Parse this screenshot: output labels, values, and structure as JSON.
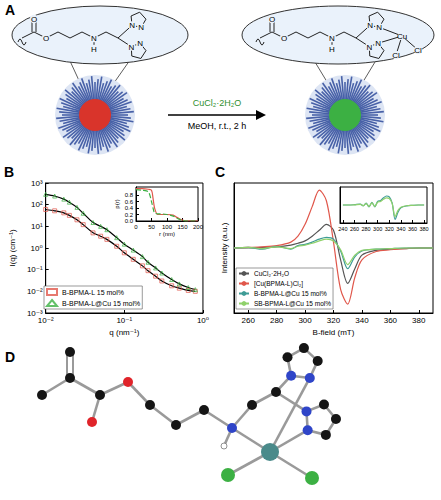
{
  "figure": {
    "A": {
      "panel": "A",
      "reagent": "CuCl₂·2H₂O",
      "conditions": "MeOH, r.t., 2 h",
      "ligand_atoms": [
        "O",
        "O",
        "N",
        "H",
        "N",
        "N",
        "N",
        "N"
      ],
      "complex_atoms": [
        "O",
        "O",
        "N",
        "H",
        "N",
        "N",
        "N",
        "N",
        "Cu",
        "Cl",
        "Cl"
      ]
    },
    "D": {
      "panel": "D"
    }
  },
  "chart_data": [
    {
      "panel": "B",
      "type": "scatter",
      "log": true,
      "grid": false,
      "legend": "lower left",
      "xlabel": "q (nm⁻¹)",
      "ylabel": "I(q) (cm⁻¹)",
      "x": [
        0.01,
        0.013,
        0.017,
        0.02,
        0.025,
        0.03,
        0.04,
        0.05,
        0.06,
        0.08,
        0.1,
        0.13,
        0.17,
        0.2,
        0.25,
        0.3,
        0.4,
        0.5,
        0.65,
        0.8
      ],
      "xlim": [
        0.01,
        1
      ],
      "xticks": [
        {
          "value": 0.01,
          "label": "10⁻²"
        },
        {
          "value": 0.1,
          "label": "10⁻¹"
        },
        {
          "value": 1,
          "label": "10⁰"
        }
      ],
      "ylim": [
        0.001,
        1000
      ],
      "yticks": [
        {
          "value": 0.001,
          "label": "10⁻³"
        },
        {
          "value": 0.01,
          "label": "10⁻²"
        },
        {
          "value": 0.1,
          "label": "10⁻¹"
        },
        {
          "value": 1,
          "label": "10⁰"
        },
        {
          "value": 10,
          "label": "10¹"
        },
        {
          "value": 100,
          "label": "10²"
        },
        {
          "value": 1000,
          "label": "10³"
        }
      ],
      "series": [
        {
          "name": "B-BPMA-L 15 mol%",
          "type": "scatter",
          "marker": "square",
          "color": "#e0574b",
          "values": [
            60,
            52,
            42,
            32,
            20,
            12,
            5,
            3.5,
            2.5,
            1.2,
            0.6,
            0.3,
            0.15,
            0.09,
            0.05,
            0.03,
            0.018,
            0.014,
            0.011,
            0.01
          ]
        },
        {
          "name": "B-BPMA-L@Cu 15 mol%",
          "type": "scatter",
          "marker": "triangle",
          "color": "#3cb043",
          "values": [
            300,
            250,
            180,
            130,
            75,
            40,
            15,
            10,
            7,
            3,
            1.5,
            0.8,
            0.4,
            0.22,
            0.12,
            0.07,
            0.035,
            0.022,
            0.015,
            0.012
          ]
        },
        {
          "type": "line",
          "color": "#000000",
          "line_style": "solid",
          "values": [
            60,
            52,
            42,
            32,
            20,
            12,
            5,
            3.5,
            2.5,
            1.2,
            0.6,
            0.3,
            0.15,
            0.09,
            0.05,
            0.03,
            0.018,
            0.014,
            0.011,
            0.01
          ]
        },
        {
          "type": "line",
          "color": "#000000",
          "line_style": "solid",
          "values": [
            300,
            250,
            180,
            130,
            75,
            40,
            15,
            10,
            7,
            3,
            1.5,
            0.8,
            0.4,
            0.22,
            0.12,
            0.07,
            0.035,
            0.022,
            0.015,
            0.012
          ]
        }
      ],
      "inset": {
        "type": "line",
        "grid": false,
        "xlabel": "r (nm)",
        "ylabel": "p(r)",
        "x": [
          0,
          20,
          40,
          50,
          55,
          60,
          70,
          80,
          100,
          120,
          130,
          140,
          150,
          160,
          200
        ],
        "xlim": [
          0,
          200
        ],
        "xticks": [
          0,
          50,
          100,
          150,
          200
        ],
        "ylim": [
          0,
          1.05
        ],
        "yticks": [
          {
            "value": 0,
            "label": "0.0"
          },
          0.2,
          0.4,
          0.6,
          0.8
        ],
        "series": [
          {
            "color": "#e0574b",
            "line_style": "solid",
            "values": [
              1,
              1,
              0.98,
              0.95,
              0.7,
              0.4,
              0.2,
              0.2,
              0.2,
              0.18,
              0.12,
              0.07,
              0.03,
              0,
              0
            ]
          },
          {
            "color": "#3cb043",
            "line_style": "dashed",
            "values": [
              0.97,
              0.95,
              0.9,
              0.6,
              0.4,
              0.25,
              0.22,
              0.22,
              0.2,
              0.15,
              0.1,
              0.05,
              0.02,
              0,
              0
            ]
          }
        ]
      }
    },
    {
      "panel": "C",
      "type": "line",
      "grid": false,
      "legend": "lower left",
      "tick_labels": "x",
      "xlabel": "B-field (mT)",
      "ylabel": "Intensity (a.u.)",
      "x": [
        250,
        260,
        270,
        280,
        290,
        295,
        300,
        305,
        310,
        315,
        320,
        325,
        330,
        335,
        340,
        350,
        360,
        370,
        380,
        390
      ],
      "xlim": [
        250,
        390
      ],
      "xticks": [
        260,
        280,
        300,
        320,
        340,
        360,
        380
      ],
      "ylim": [
        -1.1,
        1.1
      ],
      "series": [
        {
          "name": "CuCl₂·2H₂O",
          "color": "#555555",
          "line_style": "solid",
          "values": [
            0,
            0,
            0.01,
            0.02,
            0.05,
            0.08,
            0.12,
            0.2,
            0.3,
            0.4,
            0.3,
            -0.2,
            -0.6,
            -0.35,
            -0.12,
            -0.04,
            -0.02,
            -0.01,
            0,
            0
          ]
        },
        {
          "name": "[Cu(BPMA-L)Cl₂]",
          "color": "#e0574b",
          "line_style": "solid",
          "values": [
            0,
            0.01,
            0.02,
            0.04,
            0.1,
            0.2,
            0.4,
            0.7,
            0.98,
            0.8,
            0.1,
            -0.7,
            -0.95,
            -0.5,
            -0.2,
            -0.06,
            -0.03,
            -0.01,
            0,
            0
          ]
        },
        {
          "name": "B-BPMA-L@Cu 15 mol%",
          "color": "#3f9c96",
          "line_style": "solid",
          "values": [
            0,
            0.01,
            -0.02,
            0.03,
            -0.02,
            0.04,
            0.06,
            0.1,
            0.15,
            0.18,
            0.15,
            -0.05,
            -0.35,
            -0.15,
            -0.05,
            -0.02,
            -0.01,
            0,
            0,
            0
          ]
        },
        {
          "name": "SB-BPMA-L@Cu 15 mol%",
          "color": "#8fd16a",
          "line_style": "solid",
          "values": [
            0,
            0.01,
            -0.01,
            0.02,
            -0.01,
            0.03,
            0.05,
            0.08,
            0.12,
            0.15,
            0.12,
            -0.03,
            -0.28,
            -0.12,
            -0.04,
            -0.02,
            -0.01,
            0,
            0,
            0
          ]
        }
      ],
      "inset": {
        "type": "line",
        "grid": false,
        "tick_labels": "x",
        "x": [
          240,
          250,
          260,
          270,
          275,
          280,
          285,
          290,
          295,
          300,
          305,
          310,
          315,
          320,
          325,
          330,
          335,
          340,
          350,
          360,
          370,
          380
        ],
        "xlim": [
          235,
          385
        ],
        "xticks": [
          240,
          260,
          280,
          300,
          320,
          340,
          360,
          380
        ],
        "ylim": [
          -1,
          1
        ],
        "series": [
          {
            "color": "#3f9c96",
            "line_style": "solid",
            "values": [
              0,
              0,
              0.02,
              0.05,
              -0.05,
              0.1,
              -0.1,
              0.15,
              -0.1,
              0.2,
              0.25,
              0.4,
              0.5,
              0.45,
              0.1,
              -0.8,
              -0.4,
              -0.15,
              -0.05,
              -0.02,
              0,
              0
            ]
          },
          {
            "color": "#8fd16a",
            "line_style": "solid",
            "values": [
              0,
              0,
              0.01,
              0.04,
              -0.04,
              0.08,
              -0.08,
              0.12,
              -0.08,
              0.16,
              0.2,
              0.32,
              0.4,
              0.36,
              0.08,
              -0.65,
              -0.3,
              -0.12,
              -0.04,
              -0.02,
              0,
              0
            ]
          }
        ]
      }
    }
  ]
}
